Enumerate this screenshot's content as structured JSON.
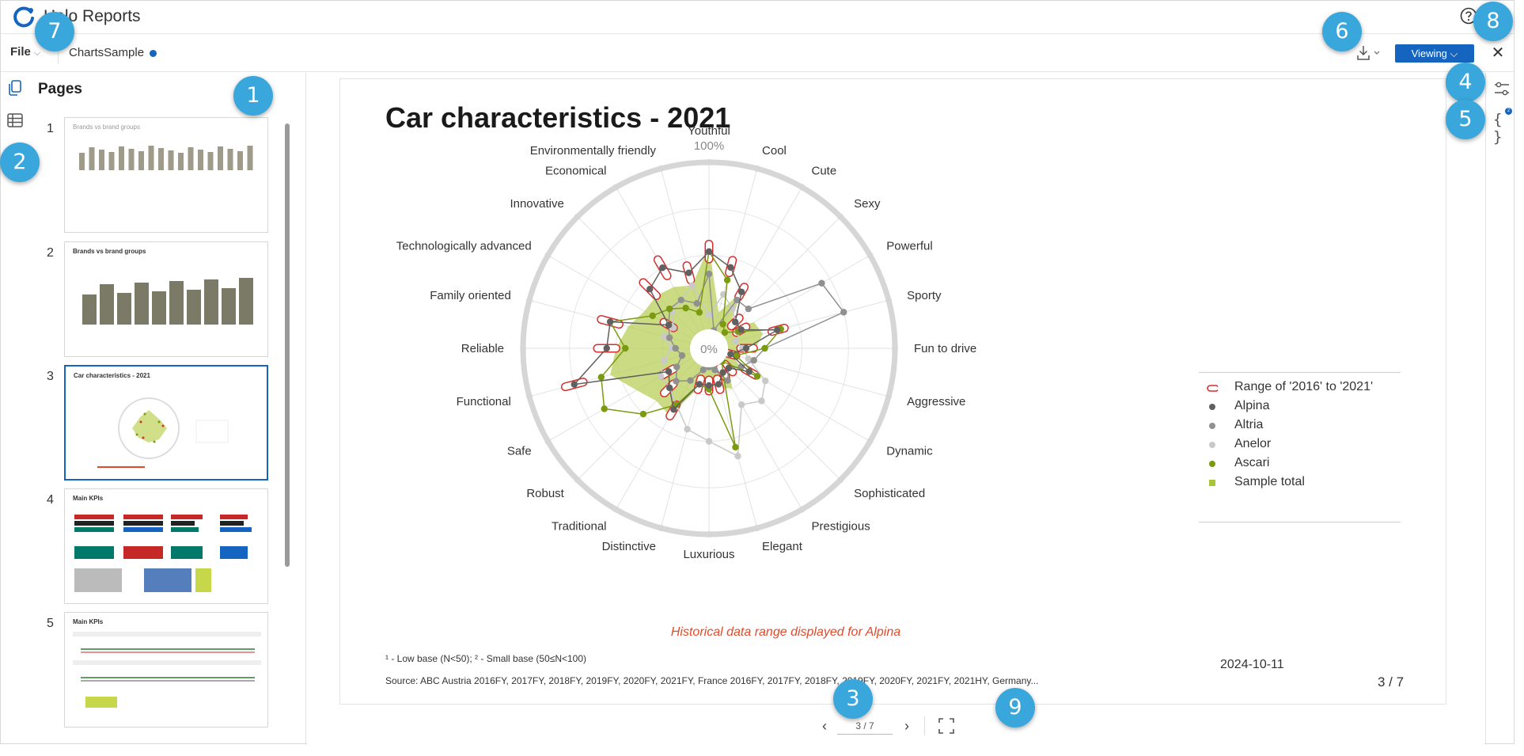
{
  "app": {
    "title": "Halo Reports"
  },
  "toolbar": {
    "file_label": "File",
    "doc_name": "ChartsSample",
    "viewing_label": "Viewing"
  },
  "pages_panel": {
    "title": "Pages",
    "pages": [
      {
        "number": "1",
        "title": "Brands vs brand groups"
      },
      {
        "number": "2",
        "title": "Brands vs brand groups"
      },
      {
        "number": "3",
        "title": "Car characteristics - 2021"
      },
      {
        "number": "4",
        "title": "Main KPIs"
      },
      {
        "number": "5",
        "title": "Main KPIs"
      }
    ]
  },
  "report": {
    "title": "Car characteristics - 2021",
    "historical_note": "Historical data range displayed for Alpina",
    "footnote": "¹ - Low base (N<50);   ² - Small base (50≤N<100)",
    "source": "Source: ABC Austria 2016FY, 2017FY, 2018FY, 2019FY, 2020FY, 2021FY, France 2016FY, 2017FY, 2018FY, 2019FY, 2020FY, 2021FY, 2021HY, Germany...",
    "date": "2024-10-11",
    "page_indicator": "3 / 7"
  },
  "navigation": {
    "page_input": "3 / 7"
  },
  "rightrail": {
    "badge": "2"
  },
  "callouts": [
    "1",
    "2",
    "3",
    "4",
    "5",
    "6",
    "7",
    "8",
    "9"
  ],
  "chart_data": {
    "type": "radar",
    "title": "Car characteristics - 2021",
    "range": {
      "min_label": "0%",
      "max_label": "100%"
    },
    "categories": [
      "Youthful",
      "Cool",
      "Cute",
      "Sexy",
      "Powerful",
      "Sporty",
      "Fun to drive",
      "Aggressive",
      "Dynamic",
      "Sophisticated",
      "Prestigious",
      "Elegant",
      "Luxurious",
      "Distinctive",
      "Traditional",
      "Robust",
      "Safe",
      "Functional",
      "Reliable",
      "Family oriented",
      "Technologically advanced",
      "Innovative",
      "Economical",
      "Environmentally friendly"
    ],
    "legend": [
      "Range of '2016' to '2021'",
      "Alpina",
      "Altria",
      "Anelor",
      "Ascari",
      "Sample total"
    ],
    "series": [
      {
        "name": "Sample total",
        "color": "#b9cf5a",
        "values": [
          55,
          20,
          35,
          15,
          28,
          30,
          25,
          12,
          20,
          15,
          25,
          22,
          18,
          22,
          42,
          40,
          45,
          55,
          50,
          45,
          40,
          40,
          38,
          35
        ]
      },
      {
        "name": "Anelor",
        "color": "#c9c9c9",
        "values": [
          18,
          30,
          25,
          20,
          20,
          15,
          18,
          22,
          35,
          40,
          35,
          60,
          50,
          45,
          35,
          30,
          30,
          25,
          20,
          25,
          22,
          28,
          30,
          35
        ]
      },
      {
        "name": "Altria",
        "color": "#909090",
        "values": [
          40,
          10,
          30,
          30,
          70,
          75,
          30,
          25,
          20,
          15,
          20,
          12,
          10,
          12,
          20,
          25,
          20,
          15,
          18,
          22,
          25,
          30,
          30,
          25
        ]
      },
      {
        "name": "Ascari",
        "color": "#7a9a10",
        "values": [
          52,
          38,
          15,
          12,
          18,
          40,
          30,
          15,
          30,
          10,
          15,
          55,
          22,
          20,
          35,
          50,
          65,
          60,
          45,
          55,
          35,
          30,
          25,
          20
        ]
      },
      {
        "name": "Alpina",
        "color": "#606060",
        "values": [
          52,
          45,
          35,
          20,
          20,
          38,
          20,
          12,
          25,
          15,
          15,
          20,
          20,
          20,
          38,
          30,
          25,
          75,
          55,
          55,
          25,
          45,
          50,
          42
        ]
      }
    ],
    "alpina_range": {
      "color": "#d32f2f",
      "low": [
        48,
        42,
        32,
        17,
        17,
        35,
        17,
        9,
        22,
        12,
        12,
        17,
        17,
        17,
        35,
        27,
        22,
        70,
        50,
        50,
        22,
        40,
        45,
        38
      ],
      "high": [
        56,
        49,
        38,
        23,
        23,
        42,
        24,
        15,
        29,
        18,
        18,
        23,
        23,
        23,
        42,
        34,
        29,
        80,
        60,
        60,
        28,
        50,
        55,
        46
      ]
    },
    "legend_placement": "right"
  }
}
